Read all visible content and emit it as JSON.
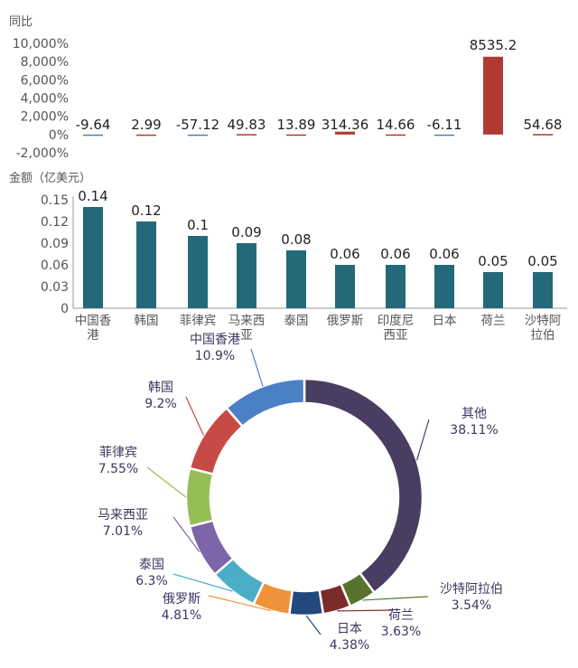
{
  "chart_data": [
    {
      "type": "bar",
      "ylabel": "同比",
      "y_unit": "%",
      "yticks": [
        "10,000%",
        "8,000%",
        "6,000%",
        "4,000%",
        "2,000%",
        "0%",
        "-2,000%"
      ],
      "ylim": [
        -2000,
        10000
      ],
      "categories": [
        "中国香港",
        "韩国",
        "菲律宾",
        "马来西亚",
        "泰国",
        "俄罗斯",
        "印度尼西亚",
        "日本",
        "荷兰",
        "沙特阿拉伯"
      ],
      "values": [
        -9.64,
        2.99,
        -57.12,
        49.83,
        13.89,
        314.36,
        14.66,
        -6.11,
        8535.2,
        54.68
      ],
      "labels": [
        "-9.64",
        "2.99",
        "-57.12",
        "49.83",
        "13.89",
        "314.36",
        "14.66",
        "-6.11",
        "8535.2",
        "54.68"
      ],
      "colors": {
        "bar": "#b03a33",
        "negative": "#4a7fb5"
      }
    },
    {
      "type": "bar",
      "ylabel": "金额（亿美元）",
      "yticks": [
        "0.15",
        "0.12",
        "0.09",
        "0.06",
        "0.03",
        "0"
      ],
      "ylim": [
        0,
        0.15
      ],
      "categories": [
        "中国香港",
        "韩国",
        "菲律宾",
        "马来西亚",
        "泰国",
        "俄罗斯",
        "印度尼西亚",
        "日本",
        "荷兰",
        "沙特阿拉伯"
      ],
      "category_lines": [
        [
          "中国香",
          "港"
        ],
        [
          "韩国"
        ],
        [
          "菲律宾"
        ],
        [
          "马来西",
          "亚"
        ],
        [
          "泰国"
        ],
        [
          "俄罗斯"
        ],
        [
          "印度尼",
          "西亚"
        ],
        [
          "日本"
        ],
        [
          "荷兰"
        ],
        [
          "沙特阿",
          "拉伯"
        ]
      ],
      "values": [
        0.14,
        0.12,
        0.1,
        0.09,
        0.08,
        0.06,
        0.06,
        0.06,
        0.05,
        0.05
      ],
      "labels": [
        "0.14",
        "0.12",
        "0.1",
        "0.09",
        "0.08",
        "0.06",
        "0.06",
        "0.06",
        "0.05",
        "0.05"
      ],
      "colors": {
        "bar": "#24697a"
      }
    },
    {
      "type": "pie",
      "variant": "donut",
      "slices": [
        {
          "label": "其他",
          "pct_label": "38.11%",
          "value": 38.11,
          "color": "#4a3d62"
        },
        {
          "label": "沙特阿拉伯",
          "pct_label": "3.54%",
          "value": 3.54,
          "color": "#58722f"
        },
        {
          "label": "荷兰",
          "pct_label": "3.63%",
          "value": 3.63,
          "color": "#7c2b2b"
        },
        {
          "label": "日本",
          "pct_label": "4.38%",
          "value": 4.38,
          "color": "#23487a"
        },
        {
          "label": "俄罗斯",
          "pct_label": "4.81%",
          "value": 4.81,
          "color": "#f0923a"
        },
        {
          "label": "泰国",
          "pct_label": "6.3%",
          "value": 6.3,
          "color": "#4aaec6"
        },
        {
          "label": "马来西亚",
          "pct_label": "7.01%",
          "value": 7.01,
          "color": "#7e64a8"
        },
        {
          "label": "菲律宾",
          "pct_label": "7.55%",
          "value": 7.55,
          "color": "#95bf55"
        },
        {
          "label": "韩国",
          "pct_label": "9.2%",
          "value": 9.2,
          "color": "#c84a46"
        },
        {
          "label": "中国香港",
          "pct_label": "10.9%",
          "value": 10.9,
          "color": "#4a80c4"
        }
      ],
      "colors": {
        "hk_segment": "#2c6b7c",
        "korea_segment": "#4a80c4",
        "philippines_segment": "#c84a46",
        "malaysia_segment": "#95bf55",
        "thailand_segment": "#7e64a8",
        "russia_segment": "#4aaec6",
        "japan_segment": "#f0923a",
        "netherlands_segment": "#23487a",
        "saudi_segment": "#7c2b2b",
        "other_segment": "#58722f"
      }
    }
  ]
}
